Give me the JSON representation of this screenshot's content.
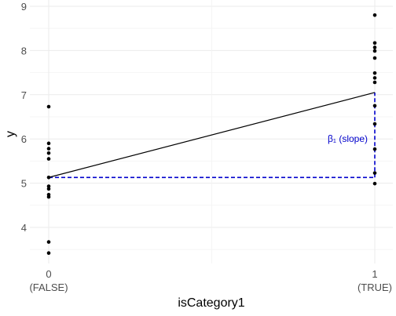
{
  "chart_data": {
    "type": "scatter",
    "xlabel": "isCategory1",
    "ylabel": "y",
    "xlim": [
      0,
      1
    ],
    "ylim": [
      3.3,
      9
    ],
    "x_ticks": [
      {
        "value": 0,
        "label": "0",
        "sublabel": "(FALSE)"
      },
      {
        "value": 1,
        "label": "1",
        "sublabel": "(TRUE)"
      }
    ],
    "y_ticks": [
      {
        "value": 4,
        "label": "4"
      },
      {
        "value": 5,
        "label": "5"
      },
      {
        "value": 6,
        "label": "6"
      },
      {
        "value": 7,
        "label": "7"
      },
      {
        "value": 8,
        "label": "8"
      },
      {
        "value": 9,
        "label": "9"
      }
    ],
    "points": [
      {
        "x": 0,
        "y": 6.73
      },
      {
        "x": 0,
        "y": 5.9
      },
      {
        "x": 0,
        "y": 5.78
      },
      {
        "x": 0,
        "y": 5.68
      },
      {
        "x": 0,
        "y": 5.55
      },
      {
        "x": 0,
        "y": 5.13
      },
      {
        "x": 0,
        "y": 4.93
      },
      {
        "x": 0,
        "y": 4.87
      },
      {
        "x": 0,
        "y": 4.74
      },
      {
        "x": 0,
        "y": 4.69
      },
      {
        "x": 0,
        "y": 3.67
      },
      {
        "x": 0,
        "y": 3.42
      },
      {
        "x": 1,
        "y": 8.8
      },
      {
        "x": 1,
        "y": 8.17
      },
      {
        "x": 1,
        "y": 8.07
      },
      {
        "x": 1,
        "y": 7.99
      },
      {
        "x": 1,
        "y": 7.83
      },
      {
        "x": 1,
        "y": 7.49
      },
      {
        "x": 1,
        "y": 7.38
      },
      {
        "x": 1,
        "y": 7.28
      },
      {
        "x": 1,
        "y": 6.75
      },
      {
        "x": 1,
        "y": 6.34
      },
      {
        "x": 1,
        "y": 5.77
      },
      {
        "x": 1,
        "y": 5.23
      },
      {
        "x": 1,
        "y": 4.99
      }
    ],
    "fit_line": {
      "x": [
        0,
        1
      ],
      "y": [
        5.13,
        7.05
      ],
      "color": "#000000"
    },
    "reference_lines": [
      {
        "kind": "horizontal",
        "y": 5.13,
        "x_from": 0,
        "x_to": 1,
        "style": "dashed",
        "color": "#0000cc"
      },
      {
        "kind": "vertical",
        "x": 1,
        "y_from": 5.13,
        "y_to": 7.05,
        "style": "dashed",
        "color": "#0000cc"
      }
    ],
    "annotations": [
      {
        "text": "β₁ (slope)",
        "x": 1,
        "y": 6.0,
        "color": "#0000cc"
      }
    ],
    "grid": true,
    "grid_color": "#ebebeb",
    "point_color": "#000000"
  }
}
